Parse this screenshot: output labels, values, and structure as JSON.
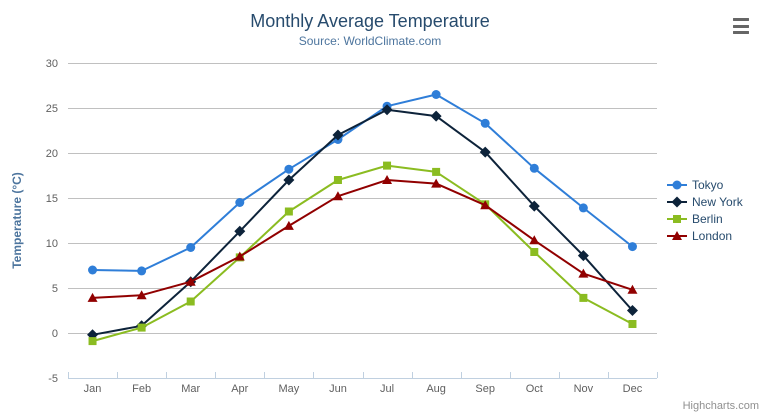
{
  "header": {
    "title": "Monthly Average Temperature",
    "subtitle": "Source: WorldClimate.com"
  },
  "chart_data": {
    "type": "line",
    "title": "Monthly Average Temperature",
    "subtitle": "Source: WorldClimate.com",
    "categories": [
      "Jan",
      "Feb",
      "Mar",
      "Apr",
      "May",
      "Jun",
      "Jul",
      "Aug",
      "Sep",
      "Oct",
      "Nov",
      "Dec"
    ],
    "series": [
      {
        "name": "Tokyo",
        "color": "#2f7ed8",
        "marker": "circle",
        "values": [
          7.0,
          6.9,
          9.5,
          14.5,
          18.2,
          21.5,
          25.2,
          26.5,
          23.3,
          18.3,
          13.9,
          9.6
        ]
      },
      {
        "name": "New York",
        "color": "#0d233a",
        "marker": "diamond",
        "values": [
          -0.2,
          0.8,
          5.7,
          11.3,
          17.0,
          22.0,
          24.8,
          24.1,
          20.1,
          14.1,
          8.6,
          2.5
        ]
      },
      {
        "name": "Berlin",
        "color": "#8bbc21",
        "marker": "square",
        "values": [
          -0.9,
          0.6,
          3.5,
          8.4,
          13.5,
          17.0,
          18.6,
          17.9,
          14.3,
          9.0,
          3.9,
          1.0
        ]
      },
      {
        "name": "London",
        "color": "#910000",
        "marker": "triangle",
        "values": [
          3.9,
          4.2,
          5.7,
          8.5,
          11.9,
          15.2,
          17.0,
          16.6,
          14.2,
          10.3,
          6.6,
          4.8
        ]
      }
    ],
    "xlabel": "",
    "ylabel": "Temperature (°C)",
    "ylim": [
      -5,
      30
    ],
    "ytick_step": 5,
    "yticks": [
      30,
      25,
      20,
      15,
      10,
      5,
      0,
      -5
    ],
    "grid": true,
    "legend_position": "right"
  },
  "legend": {
    "items": [
      "Tokyo",
      "New York",
      "Berlin",
      "London"
    ]
  },
  "credits": {
    "label": "Highcharts.com"
  },
  "icons": {
    "export_menu": "hamburger-menu-icon"
  },
  "colors": {
    "title": "#274b6d",
    "subtitle": "#4d759e",
    "axis_title": "#4d759e",
    "tick_label": "#606060",
    "grid_line": "#c0c0c0",
    "axis_line": "#c0d0e0",
    "legend_text": "#274b6d",
    "credits_text": "#909090",
    "menu_icon": "#666666",
    "background": "#ffffff"
  }
}
